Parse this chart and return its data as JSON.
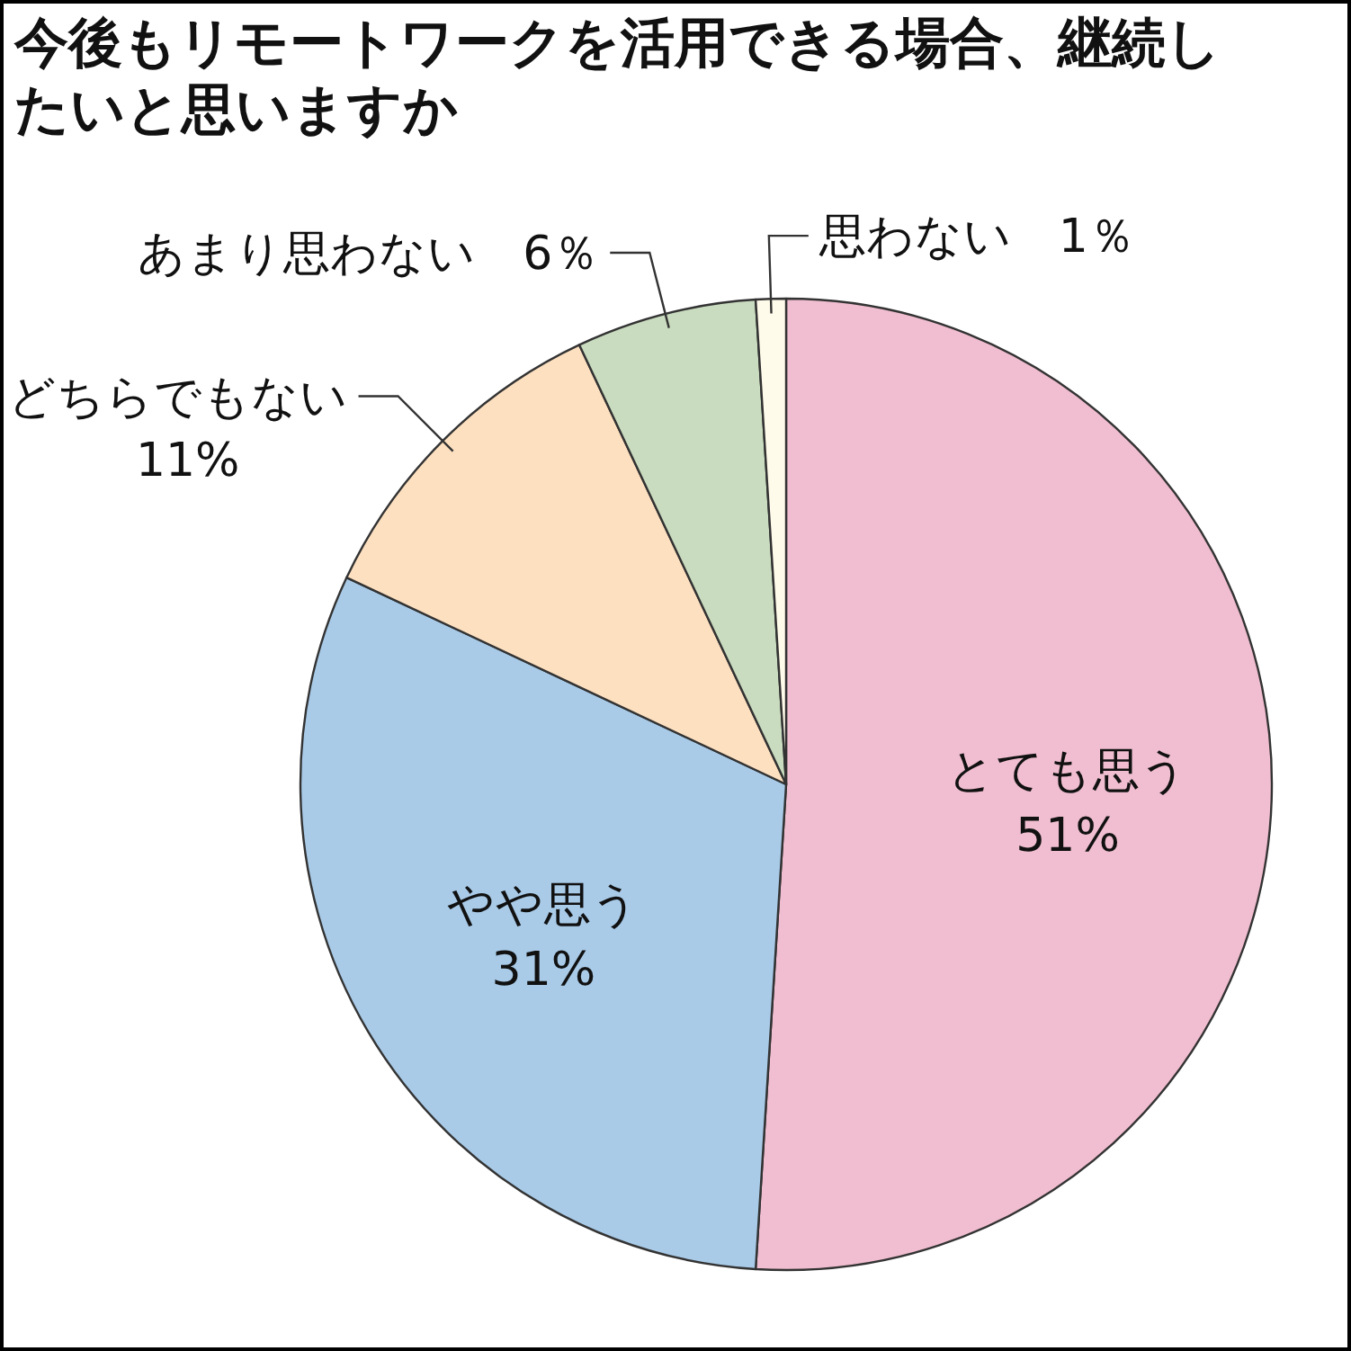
{
  "chart_data": {
    "type": "pie",
    "title": "今後もリモートワークを活用できる場合、継続したいと思いますか",
    "categories": [
      "とても思う",
      "やや思う",
      "どちらでもない",
      "あまり思わない",
      "思わない"
    ],
    "values": [
      51,
      31,
      11,
      6,
      1
    ],
    "colors": [
      "#f0bed0",
      "#a9cbe8",
      "#fde0c0",
      "#c9dcbf",
      "#fffbea"
    ],
    "value_labels": [
      "51%",
      "31%",
      "11%",
      "6％",
      "1％"
    ]
  }
}
